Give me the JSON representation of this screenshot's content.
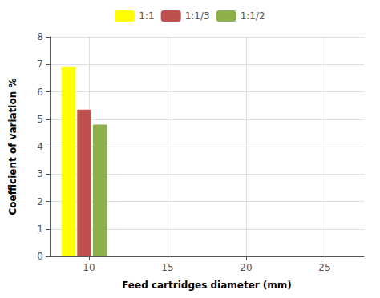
{
  "chart_data": {
    "type": "bar",
    "xlabel": "Feed cartridges diameter (mm)",
    "ylabel": "Coefficient of variation %",
    "xlim": [
      7.5,
      27.5
    ],
    "xticks": [
      10,
      15,
      20,
      25
    ],
    "ylim": [
      0,
      8
    ],
    "yticks": [
      0,
      1,
      2,
      3,
      4,
      5,
      6,
      7,
      8
    ],
    "grid": true,
    "legend": "top",
    "series": [
      {
        "name": "1:1",
        "color": "#ffff00",
        "x": [
          8.7
        ],
        "values": [
          6.9
        ]
      },
      {
        "name": "1:1/3",
        "color": "#c0504d",
        "x": [
          9.7
        ],
        "values": [
          5.35
        ]
      },
      {
        "name": "1:1/2",
        "color": "#8db04a",
        "x": [
          10.7
        ],
        "values": [
          4.8
        ]
      }
    ]
  }
}
